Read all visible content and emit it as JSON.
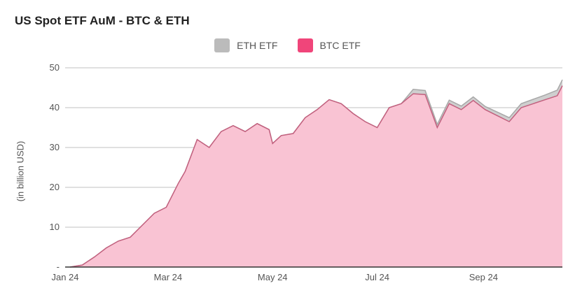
{
  "chart_data": {
    "type": "area",
    "title": "US Spot ETF AuM - BTC & ETH",
    "ylabel": "(in billion USD)",
    "xlabel": "",
    "ylim": [
      0,
      50
    ],
    "yticks": [
      "-",
      "10",
      "20",
      "30",
      "40",
      "50"
    ],
    "xticks": [
      "Jan 24",
      "Mar 24",
      "May 24",
      "Jul 24",
      "Sep 24"
    ],
    "grid": true,
    "legend_position": "top",
    "x": [
      "2024-01-04",
      "2024-01-11",
      "2024-01-18",
      "2024-01-25",
      "2024-02-01",
      "2024-02-08",
      "2024-02-15",
      "2024-02-22",
      "2024-02-29",
      "2024-03-07",
      "2024-03-11",
      "2024-03-18",
      "2024-03-25",
      "2024-04-01",
      "2024-04-08",
      "2024-04-15",
      "2024-04-22",
      "2024-04-29",
      "2024-05-01",
      "2024-05-06",
      "2024-05-13",
      "2024-05-20",
      "2024-05-27",
      "2024-06-03",
      "2024-06-10",
      "2024-06-17",
      "2024-06-24",
      "2024-07-01",
      "2024-07-08",
      "2024-07-15",
      "2024-07-22",
      "2024-07-29",
      "2024-08-05",
      "2024-08-12",
      "2024-08-19",
      "2024-08-26",
      "2024-09-02",
      "2024-09-09",
      "2024-09-16",
      "2024-09-23",
      "2024-09-30",
      "2024-10-07",
      "2024-10-14",
      "2024-10-17"
    ],
    "series": [
      {
        "name": "ETH ETF",
        "color": "#bbbbbb",
        "values": [
          0,
          0,
          0,
          0,
          0,
          0,
          0,
          0,
          0,
          0,
          0,
          0,
          0,
          0,
          0,
          0,
          0,
          0,
          0,
          0,
          0,
          0,
          0,
          0,
          0,
          0,
          0,
          0,
          0,
          0,
          1.1,
          1.0,
          0.8,
          0.9,
          0.9,
          0.9,
          0.8,
          0.9,
          1.0,
          1.0,
          1.1,
          1.2,
          1.4,
          1.5
        ]
      },
      {
        "name": "BTC ETF",
        "color": "#f0457a",
        "values": [
          0,
          0.5,
          2.5,
          4.8,
          6.5,
          7.5,
          10.5,
          13.5,
          15,
          21,
          24,
          32,
          30,
          34,
          35.5,
          34,
          36,
          34.5,
          31,
          33,
          33.5,
          37.5,
          39.5,
          42,
          41,
          38.5,
          36.5,
          35,
          40,
          41,
          43.5,
          43.3,
          35,
          41,
          39.5,
          41.8,
          39.5,
          38,
          36.5,
          40,
          41,
          42,
          43,
          45.5
        ]
      }
    ]
  }
}
